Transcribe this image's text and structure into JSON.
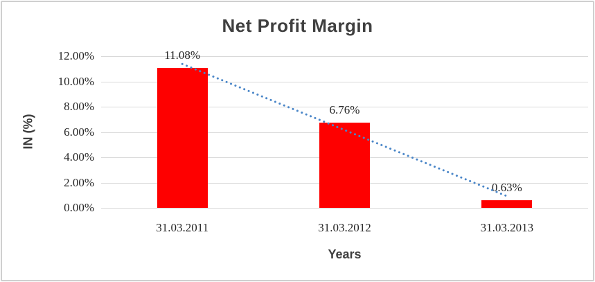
{
  "chart_data": {
    "type": "bar",
    "title": "Net Profit Margin",
    "categories": [
      "31.03.2011",
      "31.03.2012",
      "31.03.2013"
    ],
    "values": [
      11.08,
      6.76,
      0.63
    ],
    "data_labels": [
      "11.08%",
      "6.76%",
      "0.63%"
    ],
    "xlabel": "Years",
    "ylabel": "IN (%)",
    "ylim": [
      0,
      12
    ],
    "ytick_labels": [
      "0.00%",
      "2.00%",
      "4.00%",
      "6.00%",
      "8.00%",
      "10.00%",
      "12.00%"
    ],
    "grid": true,
    "legend": "none",
    "colors": {
      "bar": "#fe0000",
      "trendline": "#4a86c8",
      "gridline": "#d9d9d9",
      "title_text": "#3f3f3f",
      "label_text": "#262626"
    },
    "trendline": {
      "type": "linear",
      "style": "dotted",
      "color": "#4a86c8",
      "start_value": 11.38,
      "end_value": 0.93
    }
  }
}
